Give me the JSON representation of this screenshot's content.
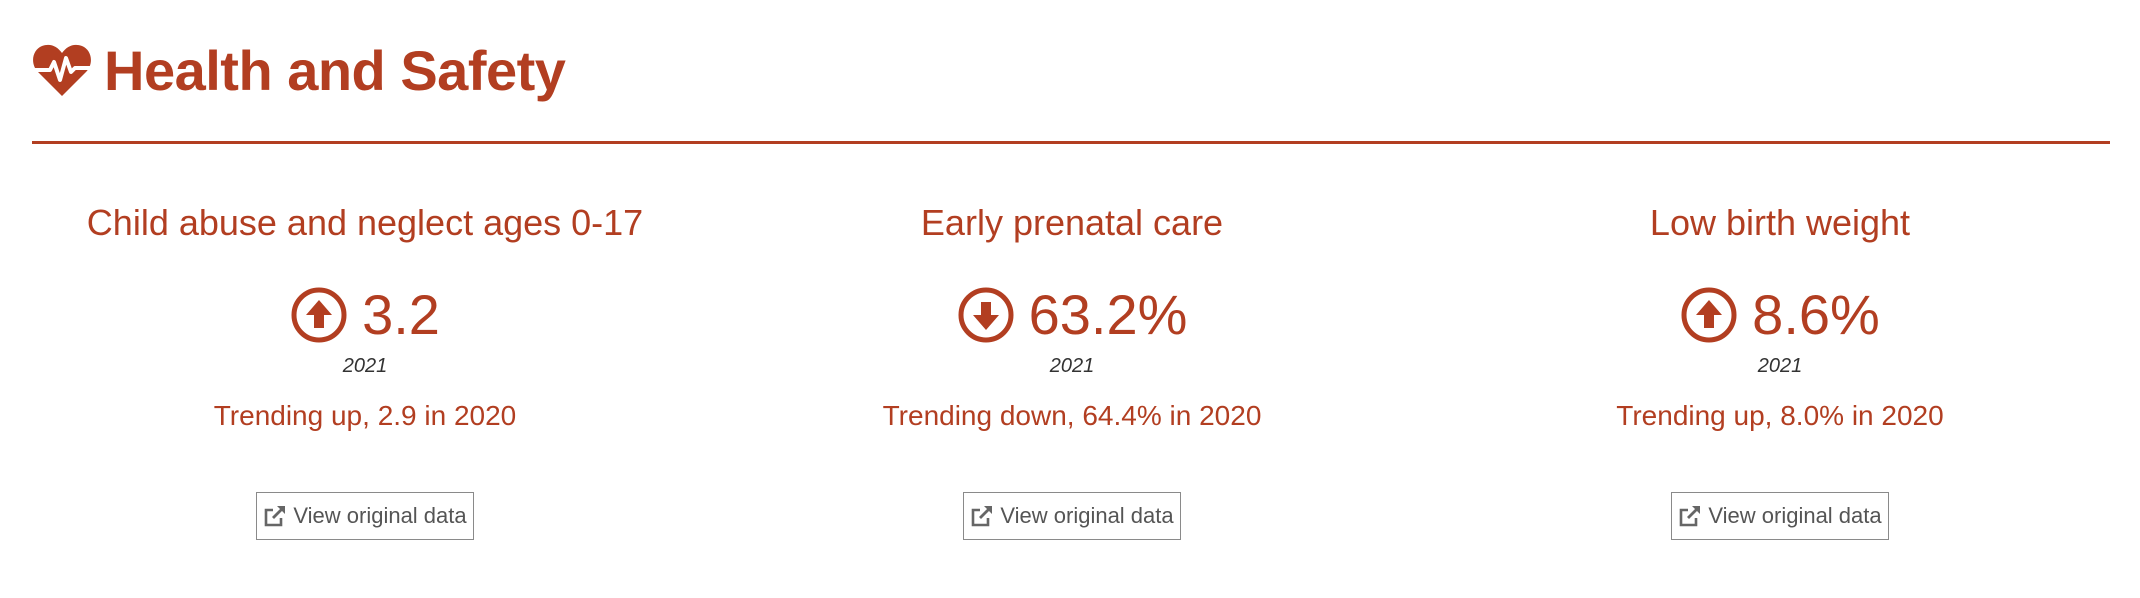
{
  "section": {
    "title": "Health and Safety",
    "icon": "heartbeat-icon",
    "accent_color": "#b23e21"
  },
  "indicators": [
    {
      "title": "Child abuse and neglect ages 0-17",
      "trend_icon": "arrow-circle-up-icon",
      "value": "3.2",
      "year": "2021",
      "trend_text": "Trending up, 2.9 in 2020",
      "button_label": "View original data",
      "button_icon": "external-link-icon"
    },
    {
      "title": "Early prenatal care",
      "trend_icon": "arrow-circle-down-icon",
      "value": "63.2%",
      "year": "2021",
      "trend_text": "Trending down, 64.4% in 2020",
      "button_label": "View original data",
      "button_icon": "external-link-icon"
    },
    {
      "title": "Low birth weight",
      "trend_icon": "arrow-circle-up-icon",
      "value": "8.6%",
      "year": "2021",
      "trend_text": "Trending up, 8.0% in 2020",
      "button_label": "View original data",
      "button_icon": "external-link-icon"
    }
  ]
}
